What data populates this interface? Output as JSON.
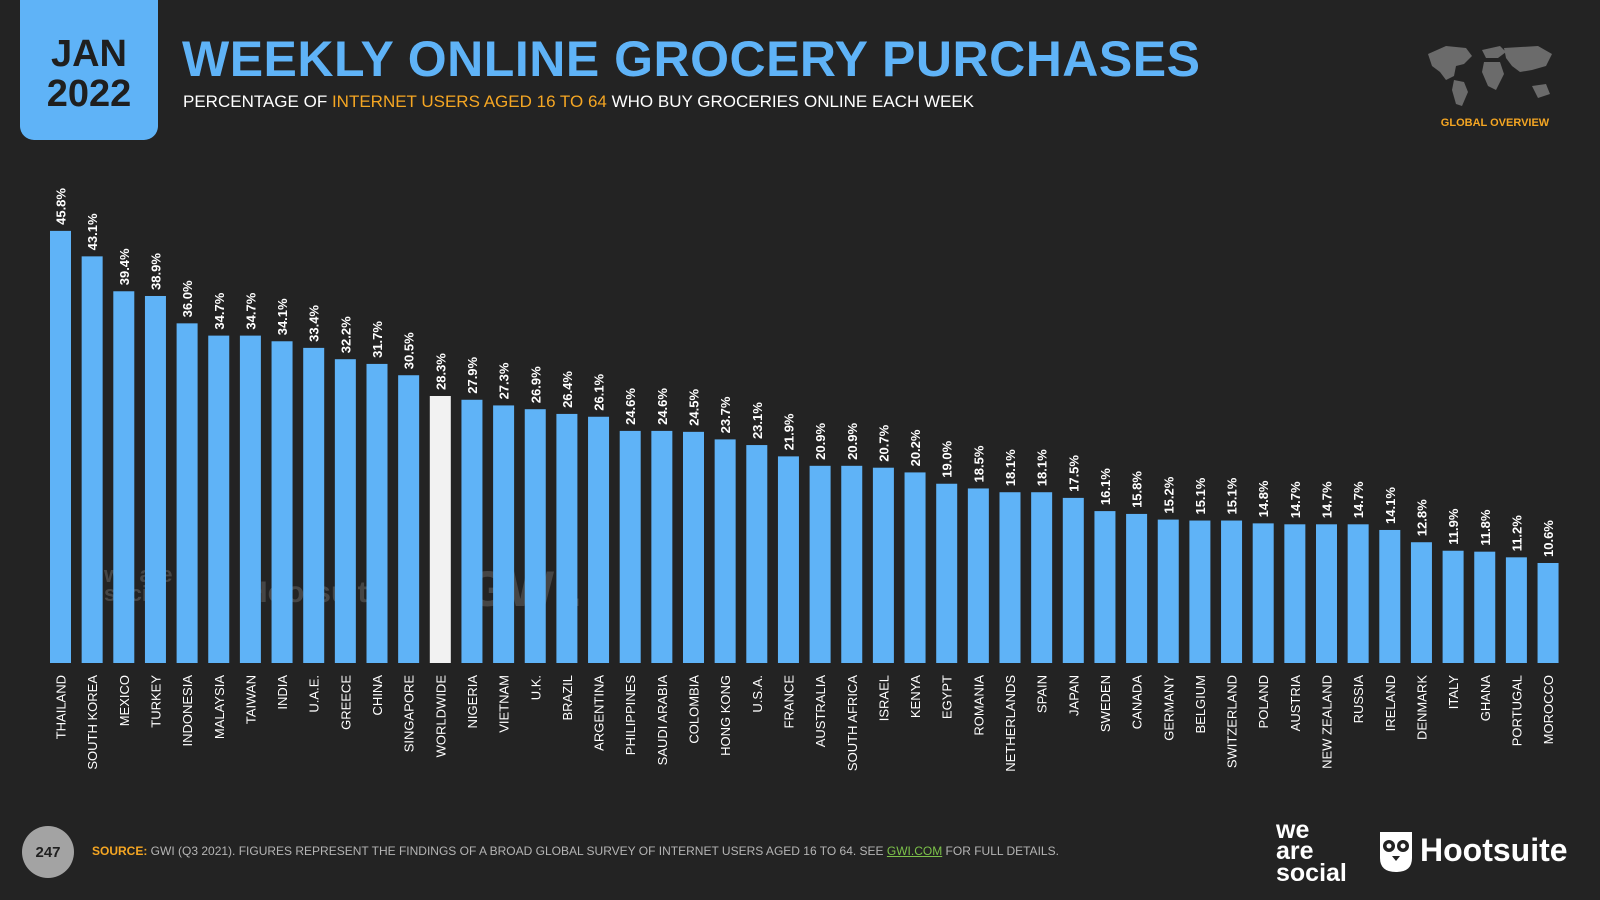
{
  "header": {
    "month": "JAN",
    "year": "2022",
    "title": "WEEKLY ONLINE GROCERY PURCHASES",
    "subtitle_pre": "PERCENTAGE OF ",
    "subtitle_highlight": "INTERNET USERS AGED 16 TO 64",
    "subtitle_post": " WHO BUY GROCERIES ONLINE EACH WEEK",
    "globe_label": "GLOBAL OVERVIEW"
  },
  "colors": {
    "bar": "#5fb3f7",
    "highlight_bar": "#f2f2f2",
    "accent": "#f5a623",
    "background": "#232323"
  },
  "chart_data": {
    "type": "bar",
    "title": "WEEKLY ONLINE GROCERY PURCHASES",
    "subtitle": "PERCENTAGE OF INTERNET USERS AGED 16 TO 64 WHO BUY GROCERIES ONLINE EACH WEEK",
    "highlight_category": "WORLDWIDE",
    "value_suffix": "%",
    "ylim": [
      0,
      46
    ],
    "grid": false,
    "categories": [
      "THAILAND",
      "SOUTH KOREA",
      "MEXICO",
      "TURKEY",
      "INDONESIA",
      "MALAYSIA",
      "TAIWAN",
      "INDIA",
      "U.A.E.",
      "GREECE",
      "CHINA",
      "SINGAPORE",
      "WORLDWIDE",
      "NIGERIA",
      "VIETNAM",
      "U.K.",
      "BRAZIL",
      "ARGENTINA",
      "PHILIPPINES",
      "SAUDI ARABIA",
      "COLOMBIA",
      "HONG KONG",
      "U.S.A.",
      "FRANCE",
      "AUSTRALIA",
      "SOUTH AFRICA",
      "ISRAEL",
      "KENYA",
      "EGYPT",
      "ROMANIA",
      "NETHERLANDS",
      "SPAIN",
      "JAPAN",
      "SWEDEN",
      "CANADA",
      "GERMANY",
      "BELGIUM",
      "SWITZERLAND",
      "POLAND",
      "AUSTRIA",
      "NEW ZEALAND",
      "RUSSIA",
      "IRELAND",
      "DENMARK",
      "ITALY",
      "GHANA",
      "PORTUGAL",
      "MOROCCO"
    ],
    "values": [
      45.8,
      43.1,
      39.4,
      38.9,
      36.0,
      34.7,
      34.7,
      34.1,
      33.4,
      32.2,
      31.7,
      30.5,
      28.3,
      27.9,
      27.3,
      26.9,
      26.4,
      26.1,
      24.6,
      24.6,
      24.5,
      23.7,
      23.1,
      21.9,
      20.9,
      20.9,
      20.7,
      20.2,
      19.0,
      18.5,
      18.1,
      18.1,
      17.5,
      16.1,
      15.8,
      15.2,
      15.1,
      15.1,
      14.8,
      14.7,
      14.7,
      14.7,
      14.1,
      12.8,
      11.9,
      11.8,
      11.2,
      10.6
    ]
  },
  "footer": {
    "page_number": "247",
    "source_label": "SOURCE:",
    "source_text": " GWI (Q3 2021). FIGURES REPRESENT THE FINDINGS OF A BROAD GLOBAL SURVEY OF INTERNET USERS AGED 16 TO 64. SEE ",
    "source_link": "GWI.COM",
    "source_tail": " FOR FULL DETAILS.",
    "brand_was_1": "we",
    "brand_was_2": "are",
    "brand_was_3": "social",
    "brand_hootsuite": "Hootsuite"
  },
  "watermarks": {
    "was": "we are social",
    "hootsuite": "Hootsuite",
    "gwi": "GWI."
  }
}
